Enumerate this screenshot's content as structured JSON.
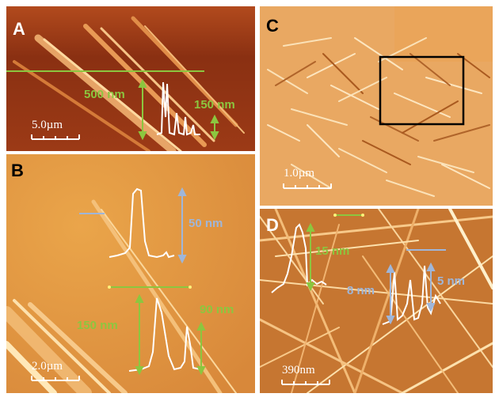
{
  "panels": {
    "A": {
      "label": "A",
      "profile_heights": [
        "500 nm",
        "150 nm"
      ],
      "scale_bar": "5.0µm"
    },
    "B": {
      "label": "B",
      "profile_heights": [
        "50 nm",
        "150 nm",
        "90 nm"
      ],
      "scale_bar": "2.0µm"
    },
    "C": {
      "label": "C",
      "scale_bar": "1.0µm"
    },
    "D": {
      "label": "D",
      "profile_heights": [
        "15 nm",
        "5 nm",
        "8 nm"
      ],
      "scale_bar": "390nm"
    }
  },
  "colors": {
    "background_orange": "#e39a3f",
    "panel_a_dark": "#9a3a14",
    "annotation_green": "#8cc63f",
    "annotation_blue": "#9fb6d9",
    "profile_white": "#ffffff",
    "inset_box": "#000000"
  }
}
